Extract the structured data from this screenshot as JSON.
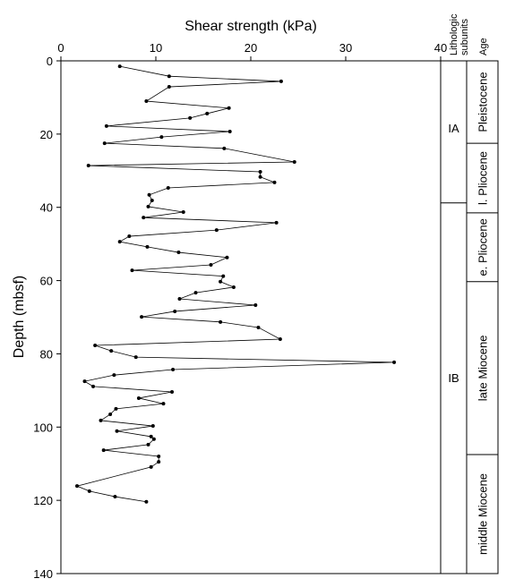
{
  "chart_data": {
    "type": "line",
    "xlabel": "Shear strength (kPa)",
    "ylabel": "Depth (mbsf)",
    "color": "#000000",
    "xlim": [
      0,
      40
    ],
    "xticks": [
      0,
      10,
      20,
      30,
      40
    ],
    "ylim": [
      0,
      140
    ],
    "yticks": [
      0,
      20,
      40,
      60,
      80,
      100,
      120,
      140
    ],
    "y_inverted": true,
    "x": [
      6.2,
      11.4,
      23.2,
      11.4,
      9.0,
      17.7,
      15.4,
      13.6,
      4.8,
      17.8,
      10.6,
      4.6,
      17.2,
      24.6,
      2.9,
      21.0,
      21.0,
      22.5,
      11.3,
      9.3,
      9.6,
      9.2,
      12.9,
      8.7,
      22.7,
      16.4,
      7.2,
      6.2,
      9.1,
      12.4,
      17.5,
      15.8,
      7.5,
      17.1,
      16.8,
      18.2,
      14.2,
      12.5,
      20.5,
      12.0,
      8.5,
      16.8,
      20.8,
      23.1,
      3.6,
      5.3,
      7.9,
      35.1,
      11.8,
      5.6,
      2.5,
      3.4,
      11.7,
      8.2,
      10.8,
      5.8,
      5.2,
      4.2,
      9.7,
      5.9,
      9.5,
      9.8,
      9.2,
      4.5,
      10.3,
      10.3,
      9.5,
      1.7,
      3.0,
      5.7,
      9.0
    ],
    "y": [
      1.5,
      4.2,
      5.6,
      7.1,
      11.0,
      12.9,
      14.4,
      15.6,
      17.8,
      19.3,
      20.8,
      22.5,
      23.9,
      27.6,
      28.6,
      30.3,
      31.7,
      33.2,
      34.7,
      36.6,
      38.1,
      39.8,
      41.3,
      42.8,
      44.2,
      46.2,
      47.9,
      49.4,
      50.8,
      52.3,
      53.7,
      55.7,
      57.2,
      58.8,
      60.3,
      61.8,
      63.3,
      65.0,
      66.7,
      68.4,
      69.9,
      71.3,
      72.8,
      76.0,
      77.7,
      79.2,
      80.9,
      82.3,
      84.3,
      85.8,
      87.5,
      88.9,
      90.4,
      92.1,
      93.6,
      95.0,
      96.5,
      98.2,
      99.7,
      101.1,
      102.6,
      103.3,
      104.8,
      106.3,
      108.0,
      109.5,
      110.9,
      116.1,
      117.5,
      119.0,
      120.4
    ],
    "subunits_header": [
      "Lithologic",
      "subunits"
    ],
    "age_header": "Age",
    "subunits": [
      {
        "label": "IA",
        "top": 0,
        "bottom": 38.8
      },
      {
        "label": "IB",
        "top": 38.8,
        "bottom": 140
      }
    ],
    "ages": [
      {
        "label": "Pleistocene",
        "top": 0,
        "bottom": 22.5
      },
      {
        "label": "l. Pliocene",
        "top": 22.5,
        "bottom": 41.5
      },
      {
        "label": "e. Pliocene",
        "top": 41.5,
        "bottom": 60.3
      },
      {
        "label": "late Miocene",
        "top": 60.3,
        "bottom": 107.5
      },
      {
        "label": "middle Miocene",
        "top": 107.5,
        "bottom": 140
      }
    ]
  }
}
